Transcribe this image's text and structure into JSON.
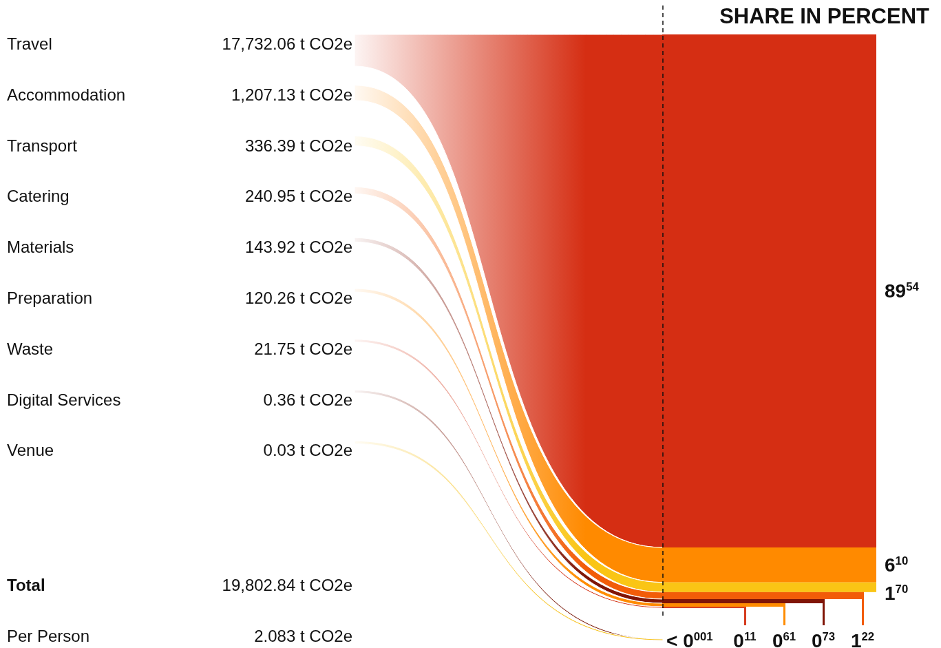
{
  "chart_data": {
    "type": "other",
    "title": "SHARE IN PERCENT",
    "categories": [
      "Travel",
      "Accommodation",
      "Transport",
      "Catering",
      "Materials",
      "Preparation",
      "Waste",
      "Digital Services",
      "Venue"
    ],
    "colors": [
      "#d52e13",
      "#ff8a00",
      "#fac515",
      "#f25c08",
      "#801506",
      "#ff8c00",
      "#d63c1f",
      "#7d1d0e",
      "#f7c21a"
    ],
    "values": [
      17732.06,
      1207.13,
      336.39,
      240.95,
      143.92,
      120.26,
      21.75,
      0.36,
      0.03
    ],
    "value_labels": [
      "17,732.06 t CO2e",
      "1,207.13 t CO2e",
      "336.39 t CO2e",
      "240.95 t CO2e",
      "143.92 t CO2e",
      "120.26 t CO2e",
      "21.75 t CO2e",
      "0.36 t CO2e",
      "0.03 t CO2e"
    ],
    "annotations": [
      "Total",
      "19,802.84 t CO2e",
      "Per Person",
      "2.083 t CO2e",
      "89$^{54}$",
      "6$^{10}$",
      "1$^{70}$",
      "1$^{22}$",
      "0$^{73}$",
      "0$^{61}$",
      "0$^{11}$",
      "< 0$^{001}$"
    ]
  }
}
